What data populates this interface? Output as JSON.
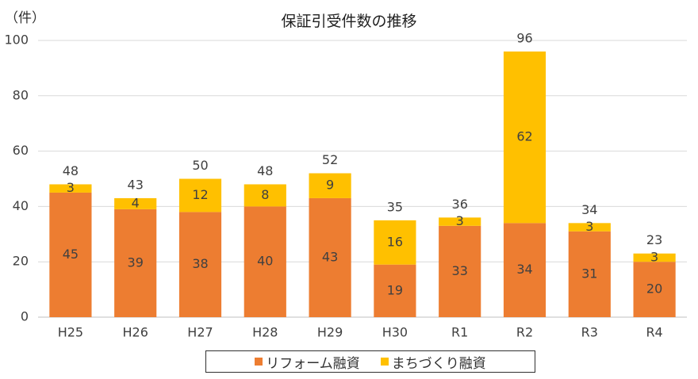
{
  "chart_data": {
    "type": "bar",
    "stacked": true,
    "title": "保証引受件数の推移",
    "ylabel": "（件）",
    "xlabel": "",
    "ylim": [
      0,
      100
    ],
    "yticks": [
      0,
      20,
      40,
      60,
      80,
      100
    ],
    "grid": true,
    "legend_position": "bottom",
    "categories": [
      "H25",
      "H26",
      "H27",
      "H28",
      "H29",
      "H30",
      "R1",
      "R2",
      "R3",
      "R4"
    ],
    "series": [
      {
        "name": "リフォーム融資",
        "color": "#ED7D31",
        "values": [
          45,
          39,
          38,
          40,
          43,
          19,
          33,
          34,
          31,
          20
        ]
      },
      {
        "name": "まちづくり融資",
        "color": "#FFC000",
        "values": [
          3,
          4,
          12,
          8,
          9,
          16,
          3,
          62,
          3,
          3
        ]
      }
    ],
    "totals": [
      48,
      43,
      50,
      48,
      52,
      35,
      36,
      96,
      34,
      23
    ]
  }
}
